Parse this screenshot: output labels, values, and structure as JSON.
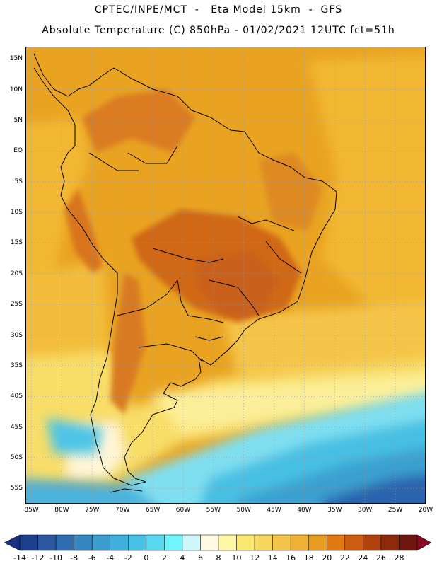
{
  "header": {
    "line1": "CPTEC/INPE/MCT  -   Eta Model 15km  -  GFS",
    "line2": "Absolute Temperature (C) 850hPa - 01/02/2021 12UTC fct=51h"
  },
  "map": {
    "lat_labels": [
      "15N",
      "10N",
      "5N",
      "EQ",
      "5S",
      "10S",
      "15S",
      "20S",
      "25S",
      "30S",
      "35S",
      "40S",
      "45S",
      "50S",
      "55S"
    ],
    "lon_labels": [
      "85W",
      "80W",
      "75W",
      "70W",
      "65W",
      "60W",
      "55W",
      "50W",
      "45W",
      "40W",
      "35W",
      "30W",
      "25W",
      "20W"
    ],
    "lat_range": [
      -57.5,
      17
    ],
    "lon_range": [
      -86,
      -20
    ],
    "grid_style": "dotted",
    "field_colors": {
      "hot": "#d4661b",
      "warm": "#e8961b",
      "mild": "#f3b62b",
      "cool": "#fbe878",
      "cold": "#6fd6ee",
      "colder": "#3aa0d0",
      "coldest": "#2a64ae"
    }
  },
  "colorbar": {
    "labels": [
      "-14",
      "-12",
      "-10",
      "-8",
      "-6",
      "-4",
      "-2",
      "0",
      "2",
      "4",
      "6",
      "8",
      "10",
      "12",
      "14",
      "16",
      "18",
      "20",
      "22",
      "24",
      "26",
      "28"
    ],
    "colors": [
      "#1c3f8c",
      "#2a57a0",
      "#2f6db0",
      "#3486c0",
      "#3a9ccf",
      "#40b0dc",
      "#47c2e6",
      "#58d8ee",
      "#6ff5fb",
      "#cff6fb",
      "#fff8e2",
      "#fff7a6",
      "#fbe871",
      "#f7d85e",
      "#f4c54a",
      "#efb136",
      "#e89c22",
      "#e07a12",
      "#cc5d10",
      "#b0420e",
      "#8e2a0c",
      "#6d1710"
    ],
    "under_color": "#1d2f80",
    "over_color": "#880a24"
  }
}
